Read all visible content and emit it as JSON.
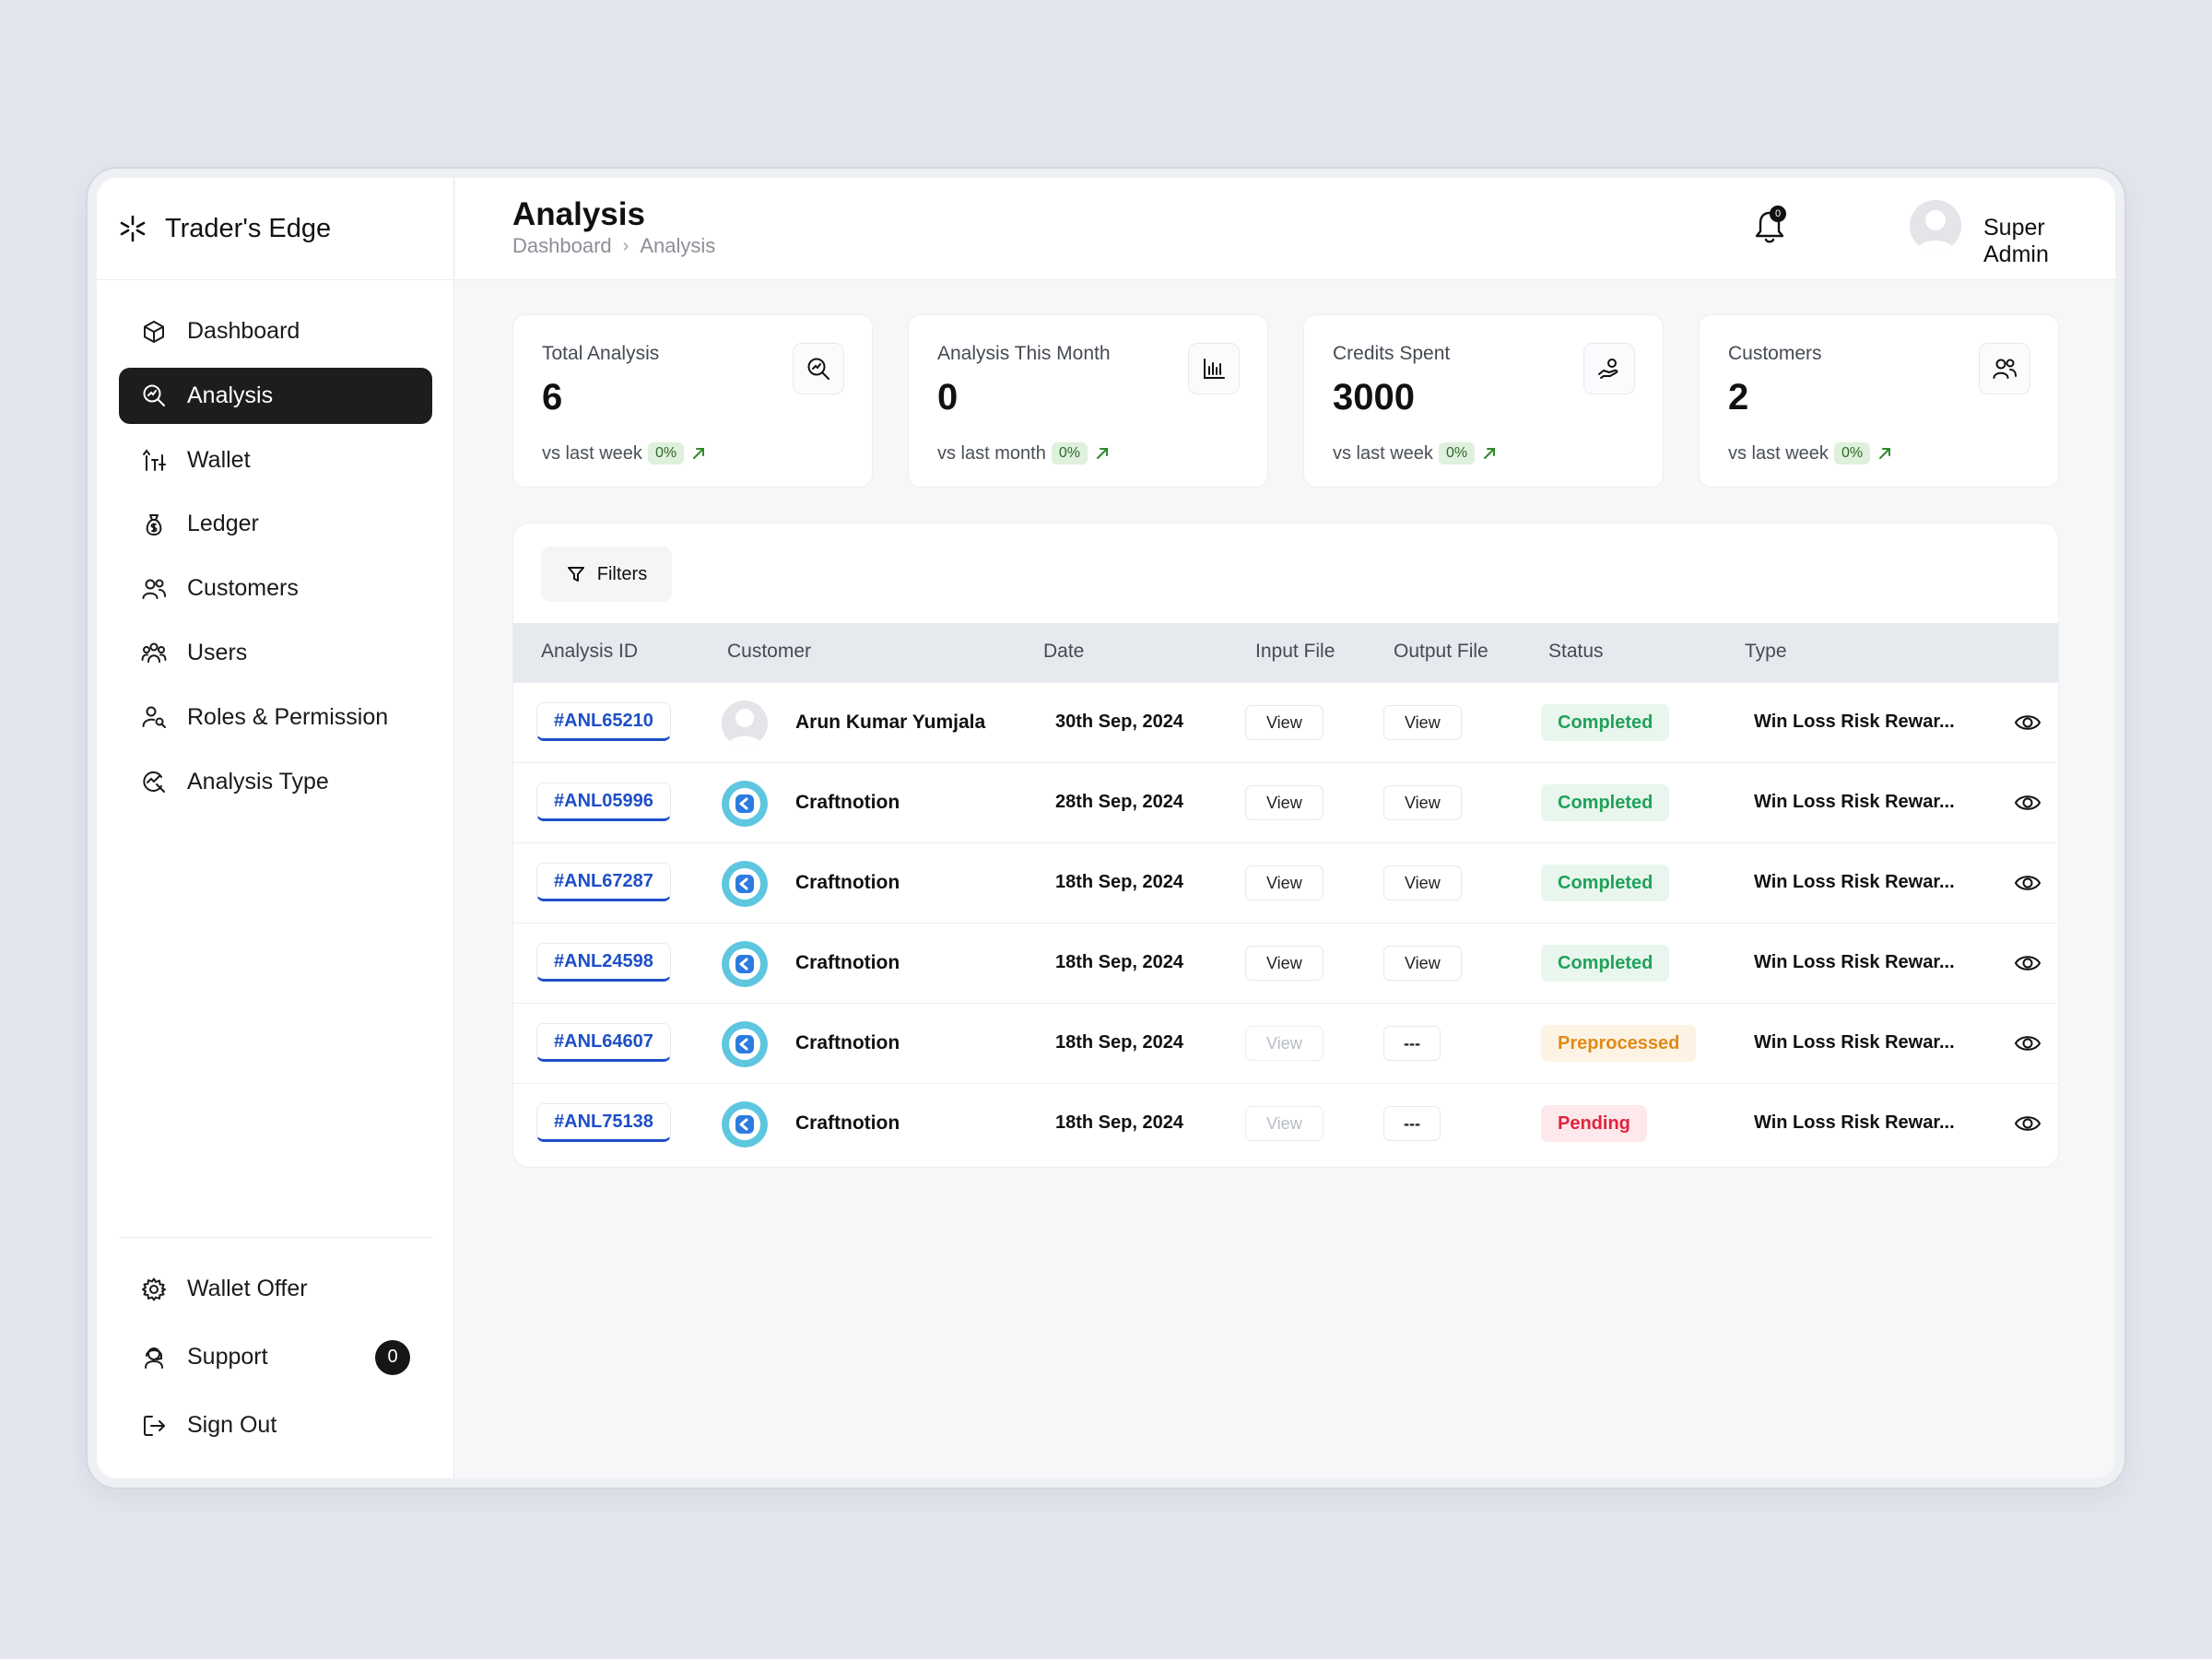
{
  "app": {
    "brand": "Trader's Edge",
    "accent": "#1d1d1f",
    "link_color": "#1e4fc8"
  },
  "sidebar": {
    "items": [
      {
        "label": "Dashboard",
        "icon": "cube-icon"
      },
      {
        "label": "Analysis",
        "icon": "search-analytics-icon",
        "active": true
      },
      {
        "label": "Wallet",
        "icon": "wallet-icon"
      },
      {
        "label": "Ledger",
        "icon": "money-bag-icon"
      },
      {
        "label": "Customers",
        "icon": "customers-icon"
      },
      {
        "label": "Users",
        "icon": "users-icon"
      },
      {
        "label": "Roles & Permission",
        "icon": "user-key-icon"
      },
      {
        "label": "Analysis Type",
        "icon": "analysis-type-icon"
      }
    ],
    "bottom": [
      {
        "label": "Wallet Offer",
        "icon": "gear-icon"
      },
      {
        "label": "Support",
        "icon": "support-icon",
        "badge": "0"
      },
      {
        "label": "Sign Out",
        "icon": "sign-out-icon"
      }
    ]
  },
  "header": {
    "title": "Analysis",
    "breadcrumb": [
      "Dashboard",
      "Analysis"
    ],
    "notifications": "0",
    "user_name": "Super Admin"
  },
  "stats": [
    {
      "label": "Total Analysis",
      "value": "6",
      "compare": "vs last week",
      "pct": "0%",
      "icon": "magnifier-chart-icon"
    },
    {
      "label": "Analysis This Month",
      "value": "0",
      "compare": "vs last month",
      "pct": "0%",
      "icon": "bar-chart-icon"
    },
    {
      "label": "Credits Spent",
      "value": "3000",
      "compare": "vs last week",
      "pct": "0%",
      "icon": "hand-coin-icon"
    },
    {
      "label": "Customers",
      "value": "2",
      "compare": "vs last week",
      "pct": "0%",
      "icon": "customers-icon"
    }
  ],
  "table": {
    "filters_label": "Filters",
    "columns": [
      "Analysis ID",
      "Customer",
      "Date",
      "Input File",
      "Output File",
      "Status",
      "Type"
    ],
    "status_colors": {
      "Completed": {
        "fg": "#22a15a",
        "bg": "#e8f6ee"
      },
      "Preprocessed": {
        "fg": "#e08a16",
        "bg": "#fdf3e4"
      },
      "Pending": {
        "fg": "#e0243c",
        "bg": "#fde8eb"
      }
    },
    "rows": [
      {
        "id": "#ANL65210",
        "customer": "Arun Kumar Yumjala",
        "avatar": "person",
        "date": "30th Sep, 2024",
        "input": "View",
        "output": "View",
        "status": "Completed",
        "type": "Win Loss Risk Rewar..."
      },
      {
        "id": "#ANL05996",
        "customer": "Craftnotion",
        "avatar": "logo",
        "date": "28th Sep, 2024",
        "input": "View",
        "output": "View",
        "status": "Completed",
        "type": "Win Loss Risk Rewar..."
      },
      {
        "id": "#ANL67287",
        "customer": "Craftnotion",
        "avatar": "logo",
        "date": "18th Sep, 2024",
        "input": "View",
        "output": "View",
        "status": "Completed",
        "type": "Win Loss Risk Rewar..."
      },
      {
        "id": "#ANL24598",
        "customer": "Craftnotion",
        "avatar": "logo",
        "date": "18th Sep, 2024",
        "input": "View",
        "output": "View",
        "status": "Completed",
        "type": "Win Loss Risk Rewar..."
      },
      {
        "id": "#ANL64607",
        "customer": "Craftnotion",
        "avatar": "logo",
        "date": "18th Sep, 2024",
        "input": "View",
        "output": "---",
        "input_disabled": true,
        "status": "Preprocessed",
        "type": "Win Loss Risk Rewar..."
      },
      {
        "id": "#ANL75138",
        "customer": "Craftnotion",
        "avatar": "logo",
        "date": "18th Sep, 2024",
        "input": "View",
        "output": "---",
        "input_disabled": true,
        "status": "Pending",
        "type": "Win Loss Risk Rewar..."
      }
    ]
  }
}
